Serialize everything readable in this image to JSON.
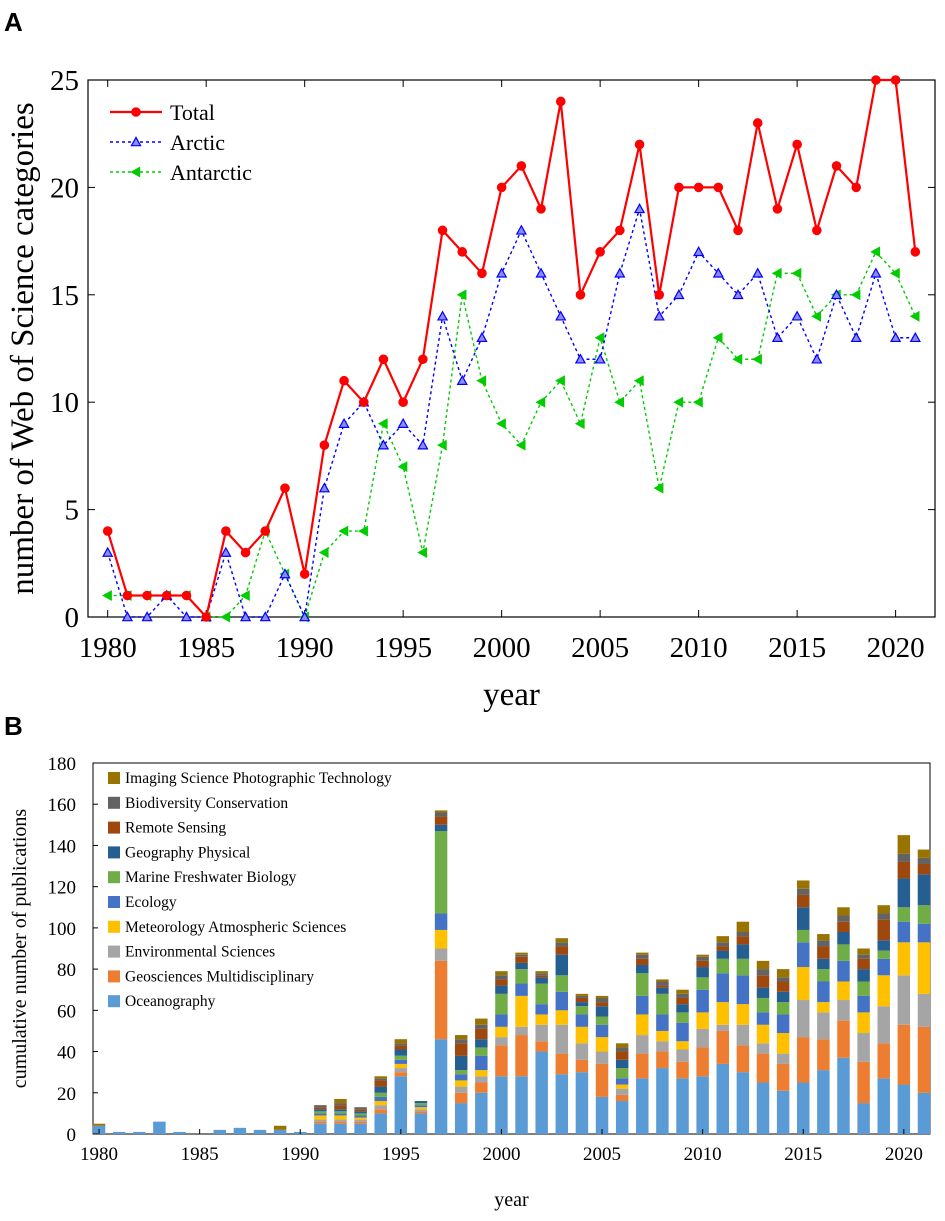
{
  "panels": {
    "a": "A",
    "b": "B"
  },
  "chart_data": [
    {
      "type": "line",
      "xlabel": "year",
      "ylabel": "number of Web of Science categories",
      "xlim": [
        1979,
        2022
      ],
      "ylim": [
        0,
        25
      ],
      "xticks": [
        1980,
        1985,
        1990,
        1995,
        2000,
        2005,
        2010,
        2015,
        2020
      ],
      "yticks": [
        0,
        5,
        10,
        15,
        20,
        25
      ],
      "x": [
        1980,
        1981,
        1982,
        1983,
        1984,
        1985,
        1986,
        1987,
        1988,
        1989,
        1990,
        1991,
        1992,
        1993,
        1994,
        1995,
        1996,
        1997,
        1998,
        1999,
        2000,
        2001,
        2002,
        2003,
        2004,
        2005,
        2006,
        2007,
        2008,
        2009,
        2010,
        2011,
        2012,
        2013,
        2014,
        2015,
        2016,
        2017,
        2018,
        2019,
        2020,
        2021
      ],
      "legend_position": "top-left",
      "series": [
        {
          "name": "Total",
          "color": "#ff0000",
          "marker": "circle",
          "style": "solid",
          "values": [
            4,
            1,
            1,
            1,
            1,
            0,
            4,
            3,
            4,
            6,
            2,
            8,
            11,
            10,
            12,
            10,
            12,
            18,
            17,
            16,
            20,
            21,
            19,
            24,
            15,
            17,
            18,
            22,
            15,
            20,
            20,
            20,
            18,
            23,
            19,
            22,
            18,
            21,
            20,
            25,
            25,
            17
          ]
        },
        {
          "name": "Arctic",
          "color": "#0000ff",
          "marker": "triangle-up",
          "style": "dotted",
          "values": [
            3,
            0,
            0,
            1,
            0,
            0,
            3,
            0,
            0,
            2,
            0,
            6,
            9,
            10,
            8,
            9,
            8,
            14,
            11,
            13,
            16,
            18,
            16,
            14,
            12,
            12,
            16,
            19,
            14,
            15,
            17,
            16,
            15,
            16,
            13,
            14,
            12,
            15,
            13,
            16,
            13,
            13
          ]
        },
        {
          "name": "Antarctic",
          "color": "#00cc00",
          "marker": "triangle-left",
          "style": "dotted",
          "values": [
            1,
            1,
            1,
            1,
            1,
            0,
            0,
            1,
            4,
            2,
            0,
            3,
            4,
            4,
            9,
            7,
            3,
            8,
            15,
            11,
            9,
            8,
            10,
            11,
            9,
            13,
            10,
            11,
            6,
            10,
            10,
            13,
            12,
            12,
            16,
            16,
            14,
            15,
            15,
            17,
            16,
            14
          ]
        }
      ]
    },
    {
      "type": "bar",
      "stacked": true,
      "xlabel": "year",
      "ylabel": "cumulative number of publications",
      "xlim": [
        1979.7,
        2021.3
      ],
      "ylim": [
        0,
        180
      ],
      "xticks": [
        1980,
        1985,
        1990,
        1995,
        2000,
        2005,
        2010,
        2015,
        2020
      ],
      "yticks": [
        0,
        20,
        40,
        60,
        80,
        100,
        120,
        140,
        160,
        180
      ],
      "legend_position": "top-left",
      "categories": [
        1980,
        1981,
        1982,
        1983,
        1984,
        1985,
        1986,
        1987,
        1988,
        1989,
        1990,
        1991,
        1992,
        1993,
        1994,
        1995,
        1996,
        1997,
        1998,
        1999,
        2000,
        2001,
        2002,
        2003,
        2004,
        2005,
        2006,
        2007,
        2008,
        2009,
        2010,
        2011,
        2012,
        2013,
        2014,
        2015,
        2016,
        2017,
        2018,
        2019,
        2020,
        2021
      ],
      "series": [
        {
          "name": "Oceanography",
          "color": "#5b9bd5",
          "values": [
            4,
            1,
            1,
            6,
            1,
            0,
            2,
            3,
            2,
            2,
            1,
            5,
            5,
            5,
            10,
            28,
            10,
            46,
            15,
            20,
            28,
            28,
            40,
            29,
            30,
            18,
            16,
            27,
            32,
            27,
            28,
            34,
            30,
            25,
            21,
            25,
            31,
            37,
            15,
            27,
            24,
            20
          ]
        },
        {
          "name": "Geosciences Multidisciplinary",
          "color": "#ed7d31",
          "values": [
            0,
            0,
            0,
            0,
            0,
            0,
            0,
            0,
            0,
            0,
            0,
            1,
            1,
            1,
            2,
            2,
            1,
            38,
            5,
            5,
            15,
            20,
            5,
            10,
            6,
            16,
            3,
            12,
            8,
            8,
            14,
            16,
            13,
            14,
            13,
            22,
            15,
            18,
            20,
            17,
            29,
            32
          ]
        },
        {
          "name": "Environmental Sciences",
          "color": "#a5a5a5",
          "values": [
            0,
            0,
            0,
            0,
            0,
            0,
            0,
            0,
            0,
            0,
            0,
            1,
            1,
            1,
            2,
            2,
            1,
            6,
            3,
            3,
            4,
            4,
            8,
            14,
            8,
            6,
            3,
            9,
            5,
            6,
            9,
            3,
            10,
            5,
            5,
            18,
            13,
            10,
            14,
            18,
            24,
            16
          ]
        },
        {
          "name": "Meteorology Atmospheric Sciences",
          "color": "#ffc000",
          "values": [
            0,
            0,
            0,
            0,
            0,
            0,
            0,
            0,
            0,
            0,
            0,
            2,
            2,
            1,
            2,
            2,
            1,
            9,
            3,
            3,
            5,
            15,
            5,
            7,
            8,
            7,
            2,
            10,
            5,
            4,
            8,
            11,
            10,
            9,
            10,
            16,
            5,
            9,
            10,
            15,
            16,
            25
          ]
        },
        {
          "name": "Ecology",
          "color": "#4472c4",
          "values": [
            0,
            0,
            0,
            0,
            0,
            0,
            0,
            0,
            0,
            0,
            0,
            1,
            1,
            1,
            2,
            2,
            1,
            8,
            3,
            7,
            6,
            6,
            5,
            9,
            6,
            6,
            3,
            9,
            8,
            9,
            11,
            14,
            14,
            6,
            9,
            12,
            10,
            10,
            8,
            8,
            10,
            9
          ]
        },
        {
          "name": "Marine Freshwater Biology",
          "color": "#70ad47",
          "values": [
            0,
            0,
            0,
            0,
            0,
            0,
            0,
            0,
            0,
            0,
            0,
            1,
            1,
            1,
            2,
            2,
            1,
            40,
            2,
            4,
            10,
            7,
            10,
            8,
            4,
            4,
            5,
            11,
            10,
            5,
            6,
            7,
            8,
            7,
            6,
            6,
            6,
            8,
            7,
            4,
            7,
            9
          ]
        },
        {
          "name": "Geography Physical",
          "color": "#255e91",
          "values": [
            0,
            0,
            0,
            0,
            0,
            0,
            0,
            0,
            0,
            0,
            0,
            1,
            1,
            1,
            3,
            3,
            1,
            3,
            7,
            4,
            4,
            3,
            3,
            10,
            2,
            5,
            4,
            4,
            3,
            4,
            5,
            4,
            7,
            5,
            5,
            11,
            5,
            6,
            6,
            5,
            14,
            15
          ]
        },
        {
          "name": "Remote Sensing",
          "color": "#9e480e",
          "values": [
            0,
            0,
            0,
            0,
            0,
            0,
            0,
            0,
            0,
            0,
            0,
            1,
            2,
            1,
            3,
            2,
            0,
            4,
            6,
            5,
            3,
            3,
            1,
            4,
            2,
            2,
            4,
            3,
            1,
            3,
            3,
            2,
            4,
            6,
            5,
            6,
            6,
            5,
            5,
            10,
            8,
            5
          ]
        },
        {
          "name": "Biodiversity Conservation",
          "color": "#636363",
          "values": [
            0,
            0,
            0,
            0,
            0,
            0,
            0,
            0,
            0,
            0,
            0,
            1,
            1,
            1,
            1,
            1,
            0,
            2,
            2,
            2,
            2,
            1,
            1,
            2,
            1,
            2,
            2,
            2,
            2,
            2,
            2,
            2,
            2,
            3,
            2,
            3,
            3,
            3,
            2,
            3,
            4,
            3
          ]
        },
        {
          "name": "Imaging Science Photographic Technology",
          "color": "#997300",
          "values": [
            1,
            0,
            0,
            0,
            0,
            0,
            0,
            0,
            0,
            2,
            0,
            0,
            2,
            0,
            1,
            2,
            0,
            1,
            2,
            3,
            2,
            1,
            1,
            2,
            1,
            1,
            2,
            1,
            1,
            2,
            1,
            3,
            5,
            4,
            4,
            4,
            3,
            4,
            3,
            4,
            9,
            4
          ]
        }
      ]
    }
  ]
}
